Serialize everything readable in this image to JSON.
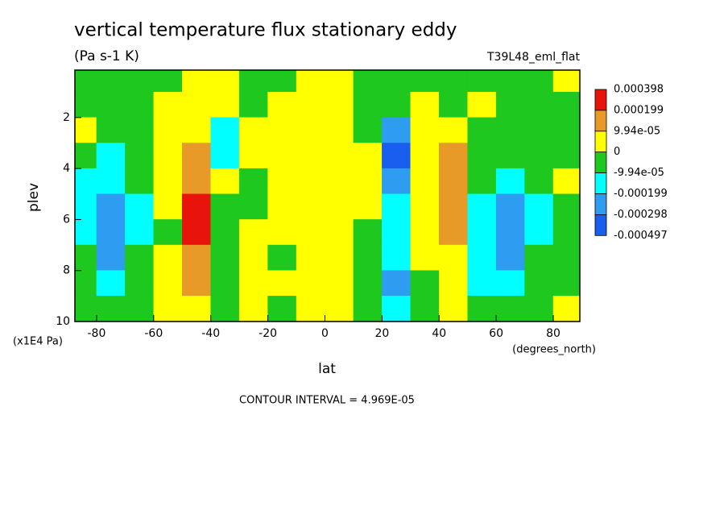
{
  "chart_data": {
    "type": "contour",
    "title": "vertical temperature flux stationary eddy",
    "subtitle": "(Pa s-1 K)",
    "dataset": "T39L48_eml_flat",
    "x_label": "lat",
    "y_label": "plev",
    "x_units": "(degrees_north)",
    "y_units": "(x1E4 Pa)",
    "footer": "CONTOUR INTERVAL = 4.969E-05",
    "x": [
      -85,
      -75,
      -65,
      -55,
      -45,
      -35,
      -25,
      -15,
      -5,
      5,
      15,
      25,
      35,
      45,
      55,
      65,
      75,
      85
    ],
    "y": [
      0.5,
      1.5,
      2.5,
      3.5,
      4.5,
      5.5,
      6.5,
      7.5,
      8.5,
      9.5
    ],
    "z": [
      [
        -5e-05,
        -5e-05,
        -5e-05,
        -5e-05,
        5e-05,
        5e-05,
        -5e-05,
        -5e-05,
        5e-05,
        5e-05,
        -5e-05,
        -5e-05,
        -5e-05,
        -5e-05,
        -5e-05,
        -5e-05,
        -5e-05,
        5e-05
      ],
      [
        -5e-05,
        -5e-05,
        -5e-05,
        5e-05,
        5e-05,
        5e-05,
        -5e-05,
        5e-05,
        5e-05,
        5e-05,
        -5e-05,
        -5e-05,
        5e-05,
        -5e-05,
        5e-05,
        -5e-05,
        -5e-05,
        -5e-05
      ],
      [
        5e-05,
        -5e-05,
        -5e-05,
        5e-05,
        5e-05,
        -0.00015,
        5e-05,
        5e-05,
        5e-05,
        5e-05,
        -5e-05,
        -0.00025,
        5e-05,
        5e-05,
        -5e-05,
        -5e-05,
        -5e-05,
        -5e-05
      ],
      [
        -5e-05,
        -0.00015,
        -5e-05,
        5e-05,
        0.00015,
        -0.00015,
        5e-05,
        5e-05,
        5e-05,
        5e-05,
        5e-05,
        -0.0004,
        5e-05,
        0.00015,
        -5e-05,
        -5e-05,
        -5e-05,
        -5e-05
      ],
      [
        -0.00015,
        -0.00015,
        -5e-05,
        5e-05,
        0.00015,
        5e-05,
        -5e-05,
        5e-05,
        5e-05,
        5e-05,
        5e-05,
        -0.00025,
        5e-05,
        0.00015,
        -5e-05,
        -0.00015,
        -5e-05,
        5e-05
      ],
      [
        -0.00015,
        -0.00025,
        -0.00015,
        5e-05,
        0.0003,
        -5e-05,
        -5e-05,
        5e-05,
        5e-05,
        5e-05,
        5e-05,
        -0.00015,
        5e-05,
        0.00015,
        -0.00015,
        -0.00025,
        -0.00015,
        -5e-05
      ],
      [
        -0.00015,
        -0.00025,
        -0.00015,
        -5e-05,
        0.0003,
        -5e-05,
        5e-05,
        5e-05,
        5e-05,
        5e-05,
        -5e-05,
        -0.00015,
        5e-05,
        0.00015,
        -0.00015,
        -0.00025,
        -0.00015,
        -5e-05
      ],
      [
        -5e-05,
        -0.00025,
        -5e-05,
        5e-05,
        0.00015,
        -5e-05,
        5e-05,
        -5e-05,
        5e-05,
        5e-05,
        -5e-05,
        -0.00015,
        5e-05,
        5e-05,
        -0.00015,
        -0.00025,
        -5e-05,
        -5e-05
      ],
      [
        -5e-05,
        -0.00015,
        -5e-05,
        5e-05,
        0.00015,
        -5e-05,
        5e-05,
        5e-05,
        5e-05,
        5e-05,
        -5e-05,
        -0.00025,
        -5e-05,
        5e-05,
        -0.00015,
        -0.00015,
        -5e-05,
        -5e-05
      ],
      [
        -5e-05,
        -5e-05,
        -5e-05,
        5e-05,
        5e-05,
        -5e-05,
        5e-05,
        -5e-05,
        5e-05,
        5e-05,
        -5e-05,
        -0.00015,
        -5e-05,
        5e-05,
        -5e-05,
        -5e-05,
        -5e-05,
        5e-05
      ]
    ],
    "levels": [
      0.000398,
      0.000199,
      {
        "value": 9.94e-05,
        "label": "9.94e-05"
      },
      0,
      {
        "value": -9.94e-05,
        "label": "-9.94e-05"
      },
      {
        "value": -0.000199,
        "label": "-0.000199"
      },
      {
        "value": -0.000298,
        "label": "-0.000298"
      },
      {
        "value": -0.000497,
        "label": "-0.000497"
      }
    ],
    "colors": [
      "#e8140c",
      "#e89a28",
      "#ffff00",
      "#1ec81e",
      "#00ffff",
      "#2e9cf0",
      "#1a5ef0"
    ],
    "xlim": [
      -87.6,
      89.3
    ],
    "ylim": [
      10,
      0.14
    ],
    "xticks": [
      -80,
      -60,
      -40,
      -20,
      0,
      20,
      40,
      60,
      80
    ],
    "yticks": [
      2,
      4,
      6,
      8,
      10
    ]
  }
}
